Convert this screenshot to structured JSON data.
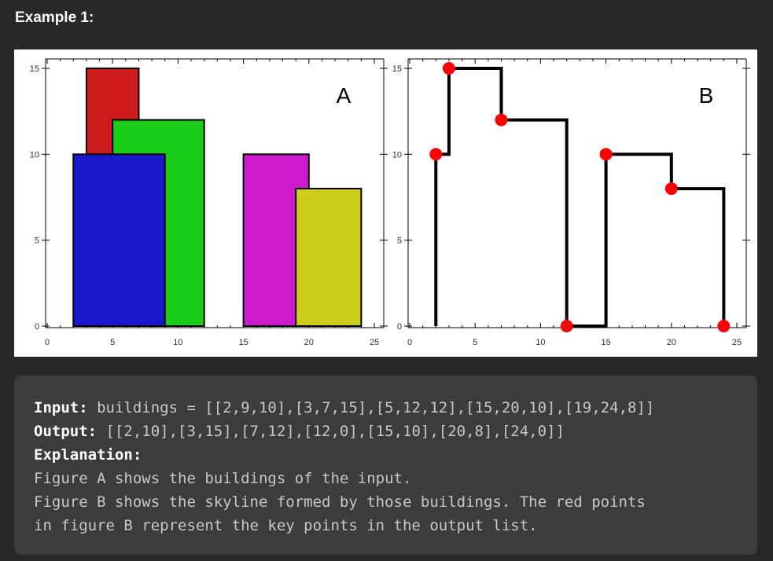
{
  "example_title": "Example 1:",
  "figure_a_label": "A",
  "figure_b_label": "B",
  "chart_data": [
    {
      "type": "bar",
      "label": "A",
      "xlim": [
        0,
        25
      ],
      "ylim": [
        0,
        15
      ],
      "x_ticks": [
        "0",
        "5",
        "10",
        "15",
        "20",
        "25"
      ],
      "y_ticks": [
        "0",
        "5",
        "10",
        "15"
      ],
      "buildings": [
        {
          "left": 2,
          "right": 9,
          "height": 10,
          "color": "#1a1acd"
        },
        {
          "left": 3,
          "right": 7,
          "height": 15,
          "color": "#cd1a1a"
        },
        {
          "left": 5,
          "right": 12,
          "height": 12,
          "color": "#1acd1a"
        },
        {
          "left": 15,
          "right": 20,
          "height": 10,
          "color": "#cd1acd"
        },
        {
          "left": 19,
          "right": 24,
          "height": 8,
          "color": "#cdcd1a"
        }
      ],
      "draw_order": [
        1,
        2,
        0,
        3,
        4
      ]
    },
    {
      "type": "line",
      "label": "B",
      "xlim": [
        0,
        25
      ],
      "ylim": [
        0,
        15
      ],
      "x_ticks": [
        "0",
        "5",
        "10",
        "15",
        "20",
        "25"
      ],
      "y_ticks": [
        "0",
        "5",
        "10",
        "15"
      ],
      "key_points": [
        [
          2,
          10
        ],
        [
          3,
          15
        ],
        [
          7,
          12
        ],
        [
          12,
          0
        ],
        [
          15,
          10
        ],
        [
          20,
          8
        ],
        [
          24,
          0
        ]
      ],
      "line_color": "#000000",
      "point_color": "#ff0000"
    }
  ],
  "code": {
    "input_label": "Input:",
    "input_value": " buildings = [[2,9,10],[3,7,15],[5,12,12],[15,20,10],[19,24,8]]",
    "output_label": "Output:",
    "output_value": " [[2,10],[3,15],[7,12],[12,0],[15,10],[20,8],[24,0]]",
    "explanation_label": "Explanation:",
    "explanation_lines": [
      "Figure A shows the buildings of the input.",
      "Figure B shows the skyline formed by those buildings. The red points",
      "in figure B represent the key points in the output list."
    ]
  }
}
